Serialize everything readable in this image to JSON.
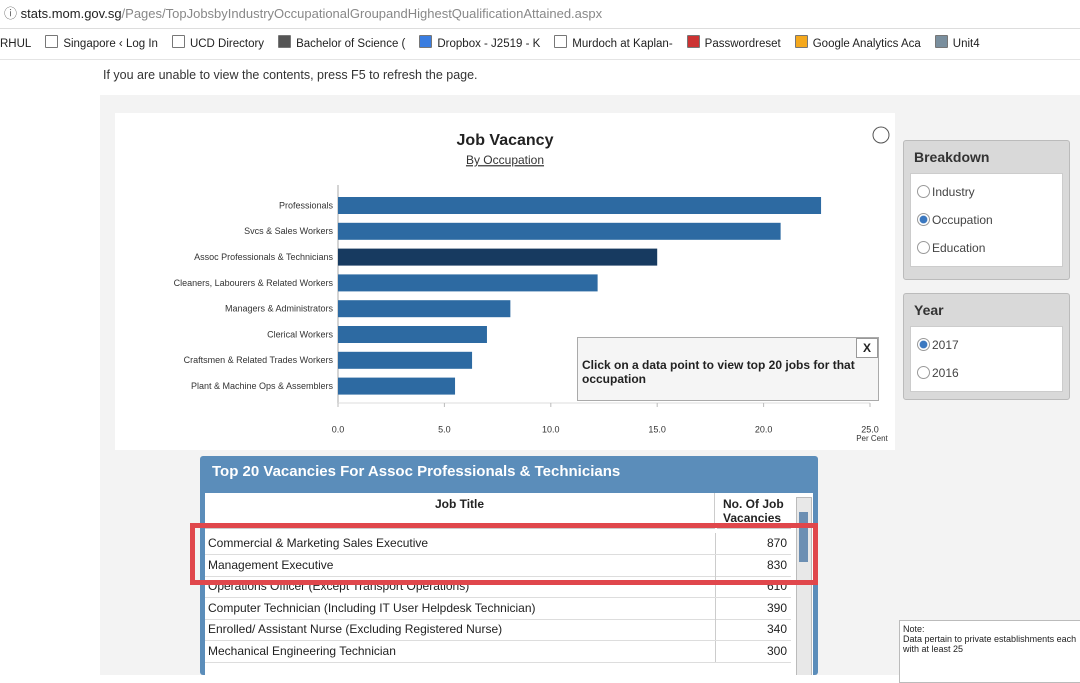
{
  "browser": {
    "url_host": "stats.mom.gov.sg",
    "url_path": "/Pages/TopJobsbyIndustryOccupationalGroupandHighestQualificationAttained.aspx",
    "bookmarks": [
      "RHUL",
      "Singapore ‹ Log In",
      "UCD Directory",
      "Bachelor of Science (",
      "Dropbox - J2519 - K",
      "Murdoch at Kaplan- ",
      "Passwordreset",
      "Google Analytics Aca",
      "Unit4"
    ]
  },
  "notice": "If you are unable to view the contents, press F5 to refresh the page.",
  "chart_data": {
    "type": "barh",
    "title": "Job Vacancy",
    "subtitle": "By Occupation",
    "categories": [
      "Professionals",
      "Svcs & Sales Workers",
      "Assoc Professionals & Technicians",
      "Cleaners, Labourers & Related Workers",
      "Managers & Administrators",
      "Clerical Workers",
      "Craftsmen & Related Trades Workers",
      "Plant & Machine Ops & Assemblers"
    ],
    "values": [
      22.7,
      20.8,
      15.0,
      12.2,
      8.1,
      7.0,
      6.3,
      5.5
    ],
    "colors": [
      "#2d6aa2",
      "#2d6aa2",
      "#173a60",
      "#2d6aa2",
      "#2d6aa2",
      "#2d6aa2",
      "#2d6aa2",
      "#2d6aa2"
    ],
    "xlim": [
      0,
      25
    ],
    "xticks": [
      {
        "value": 0,
        "label": "0.0"
      },
      {
        "value": 5,
        "label": "5.0"
      },
      {
        "value": 10,
        "label": "10.0"
      },
      {
        "value": 15,
        "label": "15.0"
      },
      {
        "value": 20,
        "label": "20.0"
      },
      {
        "value": 25,
        "label": "25.0"
      }
    ],
    "xlabel": "Per Cent",
    "tooltip": "Click on a data point to view top 20 jobs for that occupation",
    "tooltip_close": "X"
  },
  "table": {
    "title": "Top 20 Vacancies For Assoc Professionals & Technicians",
    "headers": [
      "Job Title",
      "No. Of Job Vacancies"
    ],
    "rows": [
      [
        "Commercial & Marketing Sales Executive",
        870
      ],
      [
        "Management Executive",
        830
      ],
      [
        "Operations Officer (Except Transport Operations)",
        610
      ],
      [
        "Computer Technician (Including IT User Helpdesk Technician)",
        390
      ],
      [
        "Enrolled/ Assistant Nurse (Excluding Registered Nurse)",
        340
      ],
      [
        "Mechanical Engineering Technician",
        300
      ]
    ]
  },
  "breakdown": {
    "title": "Breakdown",
    "options": [
      "Industry",
      "Occupation",
      "Education"
    ],
    "selected": 1
  },
  "year": {
    "title": "Year",
    "options": [
      "2017",
      "2016"
    ],
    "selected": 0
  },
  "note": {
    "title": "Note:",
    "text": "Data pertain to private establishments each with at least 25"
  }
}
